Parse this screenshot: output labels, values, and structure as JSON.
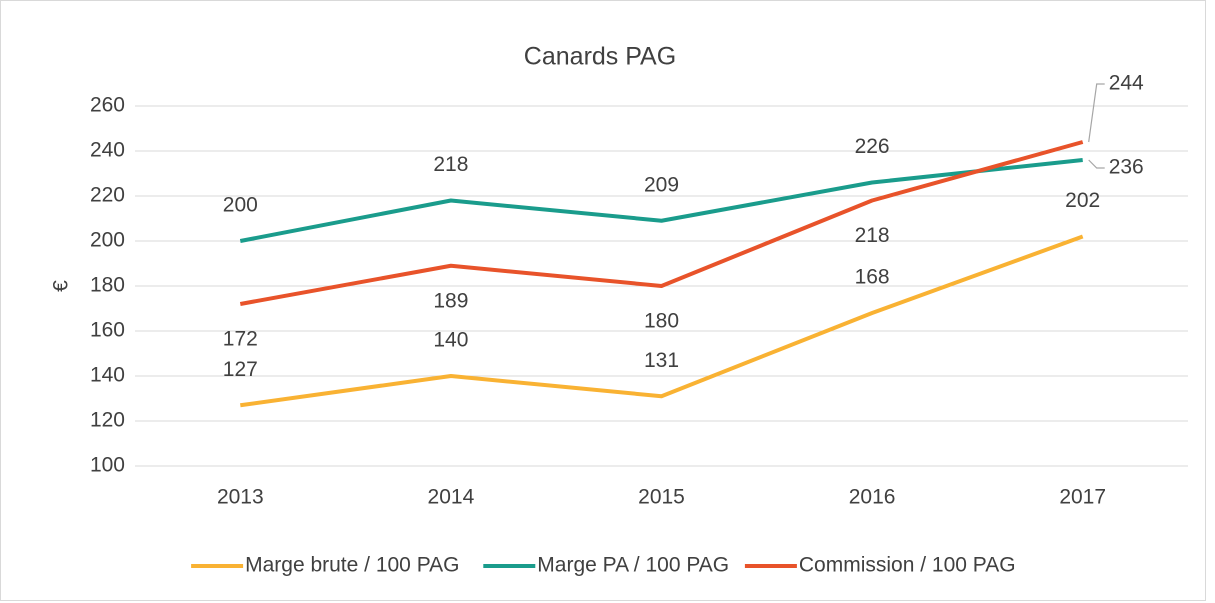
{
  "chart_data": {
    "type": "line",
    "title": "Canards PAG",
    "y_label": "€",
    "categories": [
      "2013",
      "2014",
      "2015",
      "2016",
      "2017"
    ],
    "series": [
      {
        "name": "Marge brute / 100 PAG",
        "color": "#f9b233",
        "values": [
          127,
          140,
          131,
          168,
          202
        ]
      },
      {
        "name": "Marge PA / 100 PAG",
        "color": "#1a9c8c",
        "values": [
          200,
          218,
          209,
          226,
          236
        ]
      },
      {
        "name": "Commission / 100 PAG",
        "color": "#e8532a",
        "values": [
          172,
          189,
          180,
          218,
          244
        ]
      }
    ],
    "ylim": [
      100,
      260
    ],
    "yticks": [
      100,
      120,
      140,
      160,
      180,
      200,
      220,
      240,
      260
    ],
    "grid": true,
    "legend": "bottom"
  }
}
